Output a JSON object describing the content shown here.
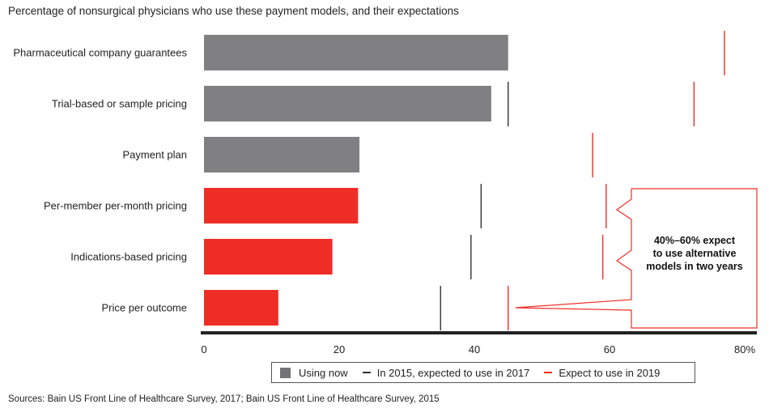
{
  "chart_data": {
    "type": "bar",
    "title": "Percentage of nonsurgical physicians who use these payment models, and their expectations",
    "categories": [
      "Pharmaceutical company guarantees",
      "Trial-based or sample pricing",
      "Payment plan",
      "Per-member per-month pricing",
      "Indications-based pricing",
      "Price per outcome"
    ],
    "series": [
      {
        "name": "Using now",
        "type": "bar",
        "values": [
          45,
          42.5,
          23,
          22.8,
          19,
          11
        ]
      },
      {
        "name": "In 2015, expected to use in 2017",
        "type": "marker",
        "values": [
          null,
          45,
          null,
          41,
          39.5,
          35
        ]
      },
      {
        "name": "Expect to use in 2019",
        "type": "marker",
        "values": [
          77,
          72.5,
          57.5,
          59.5,
          59,
          45
        ]
      }
    ],
    "bar_colors": [
      "#808083",
      "#808083",
      "#808083",
      "#EE2E26",
      "#EE2E26",
      "#EE2E26"
    ],
    "marker_colors": {
      "expected_2017": "#333333",
      "expect_2019": "#EE2E26"
    },
    "xlim": [
      0,
      80
    ],
    "xticks": [
      "0",
      "20",
      "40",
      "60",
      "80%"
    ],
    "xtick_values": [
      0,
      20,
      40,
      60,
      80
    ],
    "annotation": [
      "40%–60% expect",
      "to use alternative",
      "models in two years"
    ],
    "grid": false,
    "legend_position": "bottom"
  },
  "legend": {
    "using_now": "Using now",
    "expected_2017": "In 2015, expected to use in 2017",
    "expect_2019": "Expect to use in 2019"
  },
  "source": "Sources: Bain US Front Line of Healthcare Survey, 2017; Bain US Front Line of Healthcare Survey, 2015",
  "colors": {
    "gray": "#808083",
    "red": "#EE2E26",
    "dark": "#333333",
    "axis": "#222222"
  }
}
